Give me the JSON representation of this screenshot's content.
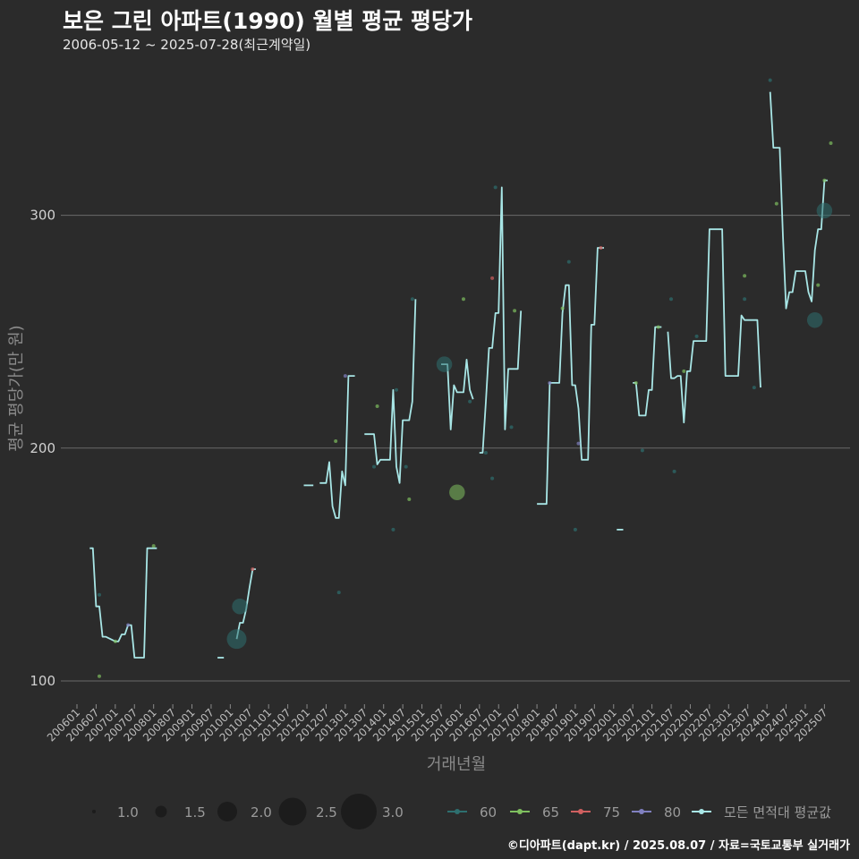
{
  "title": "보은 그린 아파트(1990) 월별 평균 평당가",
  "subtitle": "2006-05-12 ~ 2025-07-28(최근계약일)",
  "credit": "©디아파트(dapt.kr) / 2025.08.07 / 자료=국토교통부 실거래가",
  "colors": {
    "background": "#2b2b2b",
    "grid": "#6a6a6a",
    "average_line": "#a8e6e6",
    "s60": "#2e6f6f",
    "s65": "#7fbf5f",
    "s75": "#d06060",
    "s80": "#8080c0"
  },
  "chart_data": {
    "type": "line",
    "xlabel": "거래년월",
    "ylabel": "평균 평당가(만 원)",
    "ylim": [
      88,
      365
    ],
    "yticks": [
      100,
      200,
      300
    ],
    "grid": true,
    "legend_position": "bottom",
    "x_tick_labels": [
      "200601",
      "200607",
      "200701",
      "200707",
      "200801",
      "200807",
      "200901",
      "200907",
      "201001",
      "201007",
      "201101",
      "201107",
      "201201",
      "201207",
      "201301",
      "201307",
      "201401",
      "201407",
      "201501",
      "201507",
      "201601",
      "201607",
      "201701",
      "201707",
      "201801",
      "201807",
      "201901",
      "201907",
      "202001",
      "202007",
      "202101",
      "202107",
      "202201",
      "202207",
      "202301",
      "202307",
      "202401",
      "202407",
      "202501",
      "202507"
    ],
    "size_legend": {
      "values": [
        "1.0",
        "1.5",
        "2.0",
        "2.5",
        "3.0"
      ]
    },
    "color_legend": {
      "entries": [
        "60",
        "65",
        "75",
        "80",
        "모든 면적대 평균값"
      ]
    },
    "average_series": {
      "name": "모든 면적대 평균값",
      "segments": [
        [
          [
            "2006-05",
            157
          ],
          [
            "2006-06",
            157
          ],
          [
            "2006-07",
            132
          ],
          [
            "2006-08",
            132
          ],
          [
            "2006-09",
            119
          ],
          [
            "2006-10",
            119
          ],
          [
            "2007-01",
            117
          ],
          [
            "2007-02",
            117
          ],
          [
            "2007-03",
            120
          ],
          [
            "2007-04",
            120
          ],
          [
            "2007-05",
            124
          ],
          [
            "2007-06",
            124
          ],
          [
            "2007-07",
            110
          ],
          [
            "2007-08",
            110
          ],
          [
            "2007-09",
            110
          ],
          [
            "2007-10",
            110
          ],
          [
            "2007-11",
            157
          ],
          [
            "2007-12",
            157
          ],
          [
            "2008-01",
            157
          ],
          [
            "2008-02",
            157
          ]
        ],
        [
          [
            "2009-09",
            110
          ],
          [
            "2009-11",
            110
          ]
        ],
        [
          [
            "2010-03",
            118
          ],
          [
            "2010-04",
            125
          ],
          [
            "2010-05",
            125
          ],
          [
            "2010-06",
            131
          ],
          [
            "2010-07",
            140
          ],
          [
            "2010-08",
            148
          ],
          [
            "2010-09",
            148
          ]
        ],
        [
          [
            "2011-12",
            184
          ],
          [
            "2012-03",
            184
          ]
        ],
        [
          [
            "2012-05",
            185
          ],
          [
            "2012-07",
            185
          ],
          [
            "2012-08",
            194
          ],
          [
            "2012-09",
            175
          ],
          [
            "2012-10",
            170
          ],
          [
            "2012-11",
            170
          ],
          [
            "2012-12",
            190
          ],
          [
            "2013-01",
            184
          ],
          [
            "2013-02",
            231
          ],
          [
            "2013-04",
            231
          ]
        ],
        [
          [
            "2013-07",
            206
          ],
          [
            "2013-10",
            206
          ],
          [
            "2013-11",
            193
          ],
          [
            "2013-12",
            195
          ],
          [
            "2014-03",
            195
          ],
          [
            "2014-04",
            225
          ],
          [
            "2014-05",
            192
          ],
          [
            "2014-06",
            185
          ],
          [
            "2014-07",
            212
          ],
          [
            "2014-09",
            212
          ],
          [
            "2014-10",
            220
          ],
          [
            "2014-11",
            264
          ]
        ],
        [
          [
            "2015-07",
            236
          ],
          [
            "2015-09",
            236
          ],
          [
            "2015-10",
            208
          ],
          [
            "2015-11",
            227
          ],
          [
            "2015-12",
            224
          ],
          [
            "2016-02",
            224
          ],
          [
            "2016-03",
            238
          ],
          [
            "2016-04",
            225
          ],
          [
            "2016-05",
            221
          ]
        ],
        [
          [
            "2016-07",
            198
          ],
          [
            "2016-08",
            198
          ],
          [
            "2016-09",
            220
          ],
          [
            "2016-10",
            243
          ],
          [
            "2016-11",
            243
          ],
          [
            "2016-12",
            258
          ],
          [
            "2017-01",
            258
          ],
          [
            "2017-02",
            312
          ],
          [
            "2017-03",
            208
          ],
          [
            "2017-04",
            234
          ],
          [
            "2017-07",
            234
          ],
          [
            "2017-08",
            259
          ]
        ],
        [
          [
            "2018-01",
            176
          ],
          [
            "2018-04",
            176
          ],
          [
            "2018-05",
            228
          ],
          [
            "2018-08",
            228
          ],
          [
            "2018-09",
            258
          ],
          [
            "2018-10",
            270
          ],
          [
            "2018-11",
            270
          ],
          [
            "2018-12",
            227
          ],
          [
            "2019-01",
            227
          ],
          [
            "2019-02",
            217
          ],
          [
            "2019-03",
            195
          ],
          [
            "2019-05",
            195
          ],
          [
            "2019-06",
            253
          ],
          [
            "2019-07",
            253
          ],
          [
            "2019-08",
            286
          ],
          [
            "2019-10",
            286
          ]
        ],
        [
          [
            "2020-02",
            165
          ],
          [
            "2020-04",
            165
          ]
        ],
        [
          [
            "2020-07",
            228
          ],
          [
            "2020-08",
            228
          ],
          [
            "2020-09",
            214
          ],
          [
            "2020-10",
            214
          ],
          [
            "2020-11",
            214
          ],
          [
            "2020-12",
            225
          ],
          [
            "2021-01",
            225
          ],
          [
            "2021-02",
            252
          ],
          [
            "2021-04",
            252
          ]
        ],
        [
          [
            "2021-06",
            250
          ],
          [
            "2021-07",
            230
          ],
          [
            "2021-08",
            230
          ],
          [
            "2021-09",
            231
          ],
          [
            "2021-10",
            231
          ],
          [
            "2021-11",
            211
          ],
          [
            "2021-12",
            233
          ],
          [
            "2022-01",
            233
          ],
          [
            "2022-02",
            246
          ],
          [
            "2022-06",
            246
          ],
          [
            "2022-07",
            294
          ],
          [
            "2022-11",
            294
          ],
          [
            "2022-12",
            231
          ],
          [
            "2023-04",
            231
          ],
          [
            "2023-05",
            257
          ],
          [
            "2023-06",
            255
          ],
          [
            "2023-10",
            255
          ],
          [
            "2023-11",
            226
          ]
        ],
        [
          [
            "2024-02",
            353
          ],
          [
            "2024-03",
            329
          ],
          [
            "2024-05",
            329
          ],
          [
            "2024-06",
            291
          ],
          [
            "2024-07",
            260
          ],
          [
            "2024-08",
            267
          ],
          [
            "2024-09",
            267
          ],
          [
            "2024-10",
            276
          ],
          [
            "2025-01",
            276
          ],
          [
            "2025-02",
            267
          ],
          [
            "2025-03",
            263
          ],
          [
            "2025-04",
            285
          ],
          [
            "2025-05",
            294
          ],
          [
            "2025-06",
            294
          ],
          [
            "2025-07",
            315
          ],
          [
            "2025-08",
            315
          ]
        ]
      ]
    },
    "scatter_points": [
      {
        "x": "2006-08",
        "y": 137,
        "series": "60",
        "size": 1.0
      },
      {
        "x": "2006-08",
        "y": 102,
        "series": "65",
        "size": 1.0
      },
      {
        "x": "2007-01",
        "y": 117,
        "series": "65",
        "size": 1.0
      },
      {
        "x": "2007-05",
        "y": 124,
        "series": "80",
        "size": 1.0
      },
      {
        "x": "2008-01",
        "y": 158,
        "series": "65",
        "size": 1.0
      },
      {
        "x": "2010-03",
        "y": 118,
        "series": "60",
        "size": 3.0
      },
      {
        "x": "2010-04",
        "y": 132,
        "series": "60",
        "size": 2.5
      },
      {
        "x": "2010-08",
        "y": 148,
        "series": "75",
        "size": 1.0
      },
      {
        "x": "2012-10",
        "y": 203,
        "series": "65",
        "size": 1.0
      },
      {
        "x": "2012-11",
        "y": 138,
        "series": "60",
        "size": 1.0
      },
      {
        "x": "2013-01",
        "y": 231,
        "series": "80",
        "size": 1.0
      },
      {
        "x": "2013-10",
        "y": 192,
        "series": "60",
        "size": 1.0
      },
      {
        "x": "2013-11",
        "y": 218,
        "series": "65",
        "size": 1.0
      },
      {
        "x": "2014-04",
        "y": 165,
        "series": "60",
        "size": 1.0
      },
      {
        "x": "2014-05",
        "y": 225,
        "series": "60",
        "size": 1.0
      },
      {
        "x": "2014-08",
        "y": 192,
        "series": "60",
        "size": 1.0
      },
      {
        "x": "2014-09",
        "y": 178,
        "series": "65",
        "size": 1.0
      },
      {
        "x": "2014-10",
        "y": 264,
        "series": "60",
        "size": 1.0
      },
      {
        "x": "2015-08",
        "y": 236,
        "series": "60",
        "size": 2.5
      },
      {
        "x": "2015-12",
        "y": 181,
        "series": "65",
        "size": 2.5
      },
      {
        "x": "2016-02",
        "y": 264,
        "series": "65",
        "size": 1.0
      },
      {
        "x": "2016-04",
        "y": 220,
        "series": "60",
        "size": 1.0
      },
      {
        "x": "2016-09",
        "y": 198,
        "series": "60",
        "size": 1.0
      },
      {
        "x": "2016-11",
        "y": 187,
        "series": "60",
        "size": 1.0
      },
      {
        "x": "2016-11",
        "y": 273,
        "series": "75",
        "size": 1.0
      },
      {
        "x": "2016-12",
        "y": 312,
        "series": "60",
        "size": 1.0
      },
      {
        "x": "2017-05",
        "y": 209,
        "series": "60",
        "size": 1.0
      },
      {
        "x": "2017-06",
        "y": 259,
        "series": "65",
        "size": 1.0
      },
      {
        "x": "2018-05",
        "y": 228,
        "series": "80",
        "size": 1.0
      },
      {
        "x": "2018-09",
        "y": 260,
        "series": "65",
        "size": 1.0
      },
      {
        "x": "2018-11",
        "y": 280,
        "series": "60",
        "size": 1.0
      },
      {
        "x": "2019-01",
        "y": 165,
        "series": "60",
        "size": 1.0
      },
      {
        "x": "2019-02",
        "y": 202,
        "series": "80",
        "size": 1.0
      },
      {
        "x": "2019-09",
        "y": 286,
        "series": "75",
        "size": 1.0
      },
      {
        "x": "2020-08",
        "y": 228,
        "series": "65",
        "size": 1.0
      },
      {
        "x": "2020-10",
        "y": 199,
        "series": "60",
        "size": 1.0
      },
      {
        "x": "2021-03",
        "y": 252,
        "series": "65",
        "size": 1.0
      },
      {
        "x": "2021-07",
        "y": 264,
        "series": "60",
        "size": 1.0
      },
      {
        "x": "2021-08",
        "y": 190,
        "series": "60",
        "size": 1.0
      },
      {
        "x": "2021-11",
        "y": 233,
        "series": "65",
        "size": 1.0
      },
      {
        "x": "2022-03",
        "y": 248,
        "series": "60",
        "size": 1.0
      },
      {
        "x": "2023-06",
        "y": 274,
        "series": "65",
        "size": 1.0
      },
      {
        "x": "2023-06",
        "y": 264,
        "series": "60",
        "size": 1.0
      },
      {
        "x": "2023-09",
        "y": 226,
        "series": "60",
        "size": 1.0
      },
      {
        "x": "2024-02",
        "y": 358,
        "series": "60",
        "size": 1.0
      },
      {
        "x": "2024-04",
        "y": 305,
        "series": "65",
        "size": 1.0
      },
      {
        "x": "2025-04",
        "y": 255,
        "series": "60",
        "size": 2.5
      },
      {
        "x": "2025-05",
        "y": 270,
        "series": "65",
        "size": 1.0
      },
      {
        "x": "2025-07",
        "y": 302,
        "series": "60",
        "size": 2.5
      },
      {
        "x": "2025-07",
        "y": 315,
        "series": "65",
        "size": 1.0
      },
      {
        "x": "2025-09",
        "y": 331,
        "series": "65",
        "size": 1.0
      }
    ]
  }
}
